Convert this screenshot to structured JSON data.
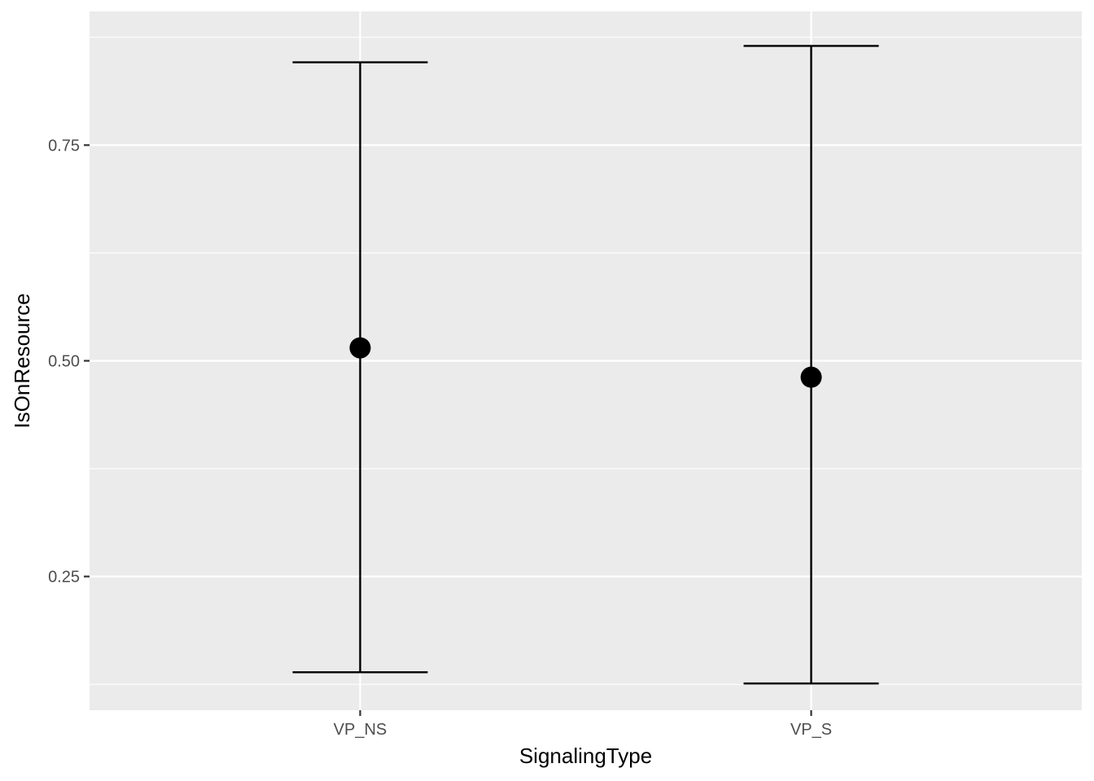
{
  "chart_data": {
    "type": "errorbar",
    "title": "",
    "xlabel": "SignalingType",
    "ylabel": "IsOnResource",
    "categories": [
      "VP_NS",
      "VP_S"
    ],
    "points": [
      {
        "category": "VP_NS",
        "y": 0.515,
        "ymin": 0.139,
        "ymax": 0.846
      },
      {
        "category": "VP_S",
        "y": 0.481,
        "ymin": 0.126,
        "ymax": 0.865
      }
    ],
    "ylim": [
      0.095,
      0.905
    ],
    "y_ticks": [
      0.25,
      0.5,
      0.75
    ],
    "y_tick_labels": [
      "0.25",
      "0.50",
      "0.75"
    ],
    "y_minor_ticks": [
      0.125,
      0.375,
      0.625,
      0.875
    ],
    "grid": true,
    "legend": "none",
    "colors": {
      "panel": "#ebebeb",
      "grid": "#ffffff",
      "mark": "#000000"
    }
  }
}
